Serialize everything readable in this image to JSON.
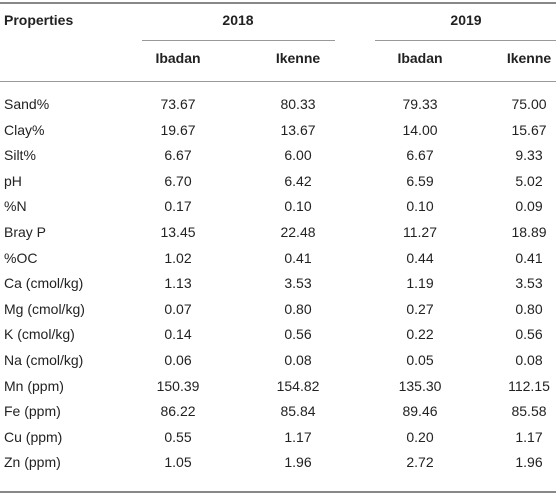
{
  "table": {
    "header": {
      "first": "Properties",
      "groups": [
        "2018",
        "2019"
      ],
      "subheaders": [
        "Ibadan",
        "Ikenne",
        "Ibadan",
        "Ikenne"
      ]
    },
    "rows": [
      [
        "Sand%",
        "73.67",
        "80.33",
        "79.33",
        "75.00"
      ],
      [
        "Clay%",
        "19.67",
        "13.67",
        "14.00",
        "15.67"
      ],
      [
        "Silt%",
        "6.67",
        "6.00",
        "6.67",
        "9.33"
      ],
      [
        "pH",
        "6.70",
        "6.42",
        "6.59",
        "5.02"
      ],
      [
        "%N",
        "0.17",
        "0.10",
        "0.10",
        "0.09"
      ],
      [
        "Bray P",
        "13.45",
        "22.48",
        "11.27",
        "18.89"
      ],
      [
        "%OC",
        "1.02",
        "0.41",
        "0.44",
        "0.41"
      ],
      [
        "Ca (cmol/kg)",
        "1.13",
        "3.53",
        "1.19",
        "3.53"
      ],
      [
        "Mg (cmol/kg)",
        "0.07",
        "0.80",
        "0.27",
        "0.80"
      ],
      [
        "K (cmol/kg)",
        "0.14",
        "0.56",
        "0.22",
        "0.56"
      ],
      [
        "Na (cmol/kg)",
        "0.06",
        "0.08",
        "0.05",
        "0.08"
      ],
      [
        "Mn (ppm)",
        "150.39",
        "154.82",
        "135.30",
        "112.15"
      ],
      [
        "Fe (ppm)",
        "86.22",
        "85.84",
        "89.46",
        "85.58"
      ],
      [
        "Cu (ppm)",
        "0.55",
        "1.17",
        "0.20",
        "1.17"
      ],
      [
        "Zn (ppm)",
        "1.05",
        "1.96",
        "2.72",
        "1.96"
      ]
    ]
  }
}
